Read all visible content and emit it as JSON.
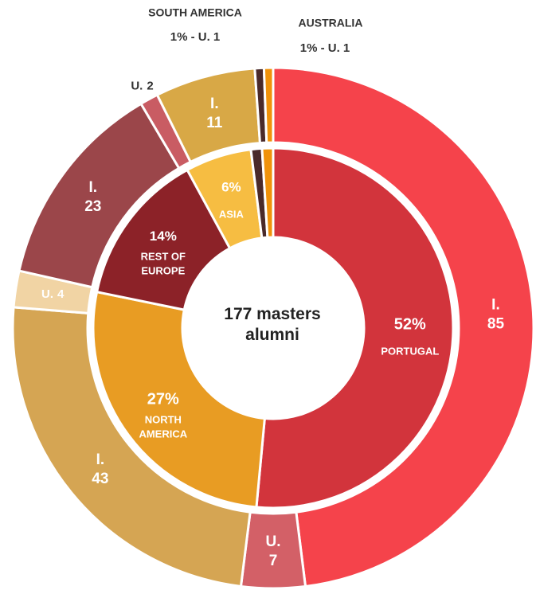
{
  "chart_data": {
    "type": "nested-donut",
    "center_label": "177 masters alumni",
    "inner": {
      "categories": [
        "PORTUGAL",
        "NORTH AMERICA",
        "REST OF EUROPE",
        "ASIA",
        "SOUTH AMERICA",
        "AUSTRALIA"
      ],
      "values": [
        52,
        27,
        14,
        6,
        1,
        1
      ],
      "value_labels": [
        "52%",
        "27%",
        "14%",
        "6%",
        "1% - U. 1",
        "1% - U. 1"
      ],
      "colors": [
        "#d2343c",
        "#e89c23",
        "#8c2228",
        "#f6bd42",
        "#4a2a2a",
        "#f0920a"
      ]
    },
    "outer": {
      "names": [
        "I.",
        "U.",
        "I.",
        "U.",
        "I.",
        "U.",
        "I.",
        null,
        null
      ],
      "values": [
        85,
        7,
        43,
        4,
        23,
        2,
        11,
        1,
        1
      ],
      "colors": [
        "#f5434b",
        "#d36067",
        "#d5a553",
        "#f1d4a4",
        "#9b464a",
        "#c95c63",
        "#d8a846",
        "#4a2a2a",
        "#f0920a"
      ]
    }
  }
}
